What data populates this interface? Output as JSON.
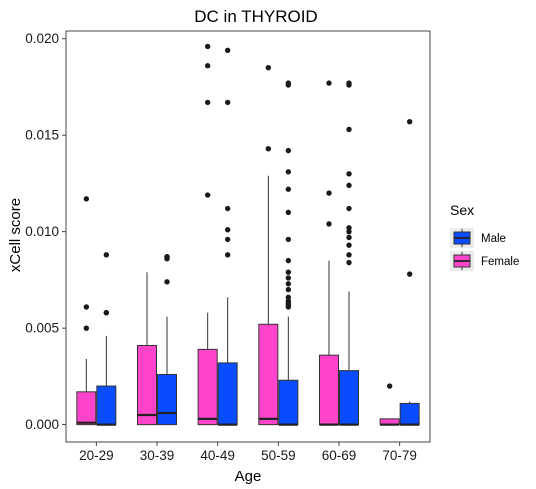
{
  "chart_data": {
    "type": "boxplot",
    "title": "DC in THYROID",
    "xlabel": "Age",
    "ylabel": "xCell score",
    "categories": [
      "20-29",
      "30-39",
      "40-49",
      "50-59",
      "60-69",
      "70-79"
    ],
    "ylim": [
      -0.0009,
      0.0204
    ],
    "yticks": [
      0.0,
      0.005,
      0.01,
      0.015,
      0.02
    ],
    "ytick_labels": [
      "0.000",
      "0.005",
      "0.010",
      "0.015",
      "0.020"
    ],
    "grid": false,
    "legend": {
      "title": "Sex",
      "placement": "right",
      "entries": [
        {
          "label": "Male",
          "color": "#0a4cff"
        },
        {
          "label": "Female",
          "color": "#ff44cc"
        }
      ]
    },
    "series": [
      {
        "name": "Female",
        "color": "#ff44cc",
        "boxes": [
          {
            "min": 0.0,
            "q1": 0.0,
            "median": 0.0001,
            "q3": 0.0017,
            "max": 0.0034,
            "outliers": [
              0.005,
              0.0061,
              0.0117
            ]
          },
          {
            "min": 0.0,
            "q1": 0.0,
            "median": 0.0005,
            "q3": 0.0041,
            "max": 0.0079,
            "outliers": []
          },
          {
            "min": 0.0,
            "q1": 0.0,
            "median": 0.0003,
            "q3": 0.0039,
            "max": 0.0058,
            "outliers": [
              0.0119,
              0.0167,
              0.0186,
              0.0196
            ]
          },
          {
            "min": 0.0,
            "q1": 0.0,
            "median": 0.0003,
            "q3": 0.0052,
            "max": 0.0129,
            "outliers": [
              0.0143,
              0.0185
            ]
          },
          {
            "min": 0.0,
            "q1": 0.0,
            "median": 0.0,
            "q3": 0.0036,
            "max": 0.0085,
            "outliers": [
              0.0104,
              0.012,
              0.0177
            ]
          },
          {
            "min": 0.0,
            "q1": 0.0,
            "median": 0.0,
            "q3": 0.0003,
            "max": 0.0003,
            "outliers": [
              0.002
            ]
          }
        ]
      },
      {
        "name": "Male",
        "color": "#0a4cff",
        "boxes": [
          {
            "min": 0.0,
            "q1": 0.0,
            "median": 0.0,
            "q3": 0.002,
            "max": 0.0046,
            "outliers": [
              0.0058,
              0.0058,
              0.0088
            ]
          },
          {
            "min": 0.0,
            "q1": 0.0,
            "median": 0.0006,
            "q3": 0.0026,
            "max": 0.0056,
            "outliers": [
              0.0074,
              0.0086,
              0.0087,
              0.0087
            ]
          },
          {
            "min": 0.0,
            "q1": 0.0,
            "median": 0.0,
            "q3": 0.0032,
            "max": 0.0066,
            "outliers": [
              0.0088,
              0.0096,
              0.0101,
              0.0112,
              0.0167,
              0.0194
            ]
          },
          {
            "min": 0.0,
            "q1": 0.0,
            "median": 0.0,
            "q3": 0.0023,
            "max": 0.0056,
            "outliers": [
              0.0061,
              0.0062,
              0.0063,
              0.0064,
              0.0066,
              0.007,
              0.0073,
              0.0076,
              0.0079,
              0.0085,
              0.0096,
              0.011,
              0.0122,
              0.0131,
              0.0142,
              0.0176,
              0.0177
            ]
          },
          {
            "min": 0.0,
            "q1": 0.0,
            "median": 0.0,
            "q3": 0.0028,
            "max": 0.0069,
            "outliers": [
              0.0084,
              0.0088,
              0.0093,
              0.0097,
              0.01,
              0.0102,
              0.0112,
              0.0124,
              0.013,
              0.0153,
              0.0176,
              0.0177
            ]
          },
          {
            "min": 0.0,
            "q1": 0.0,
            "median": 0.0,
            "q3": 0.0011,
            "max": 0.0012,
            "outliers": [
              0.0078,
              0.0157
            ]
          }
        ]
      }
    ]
  }
}
